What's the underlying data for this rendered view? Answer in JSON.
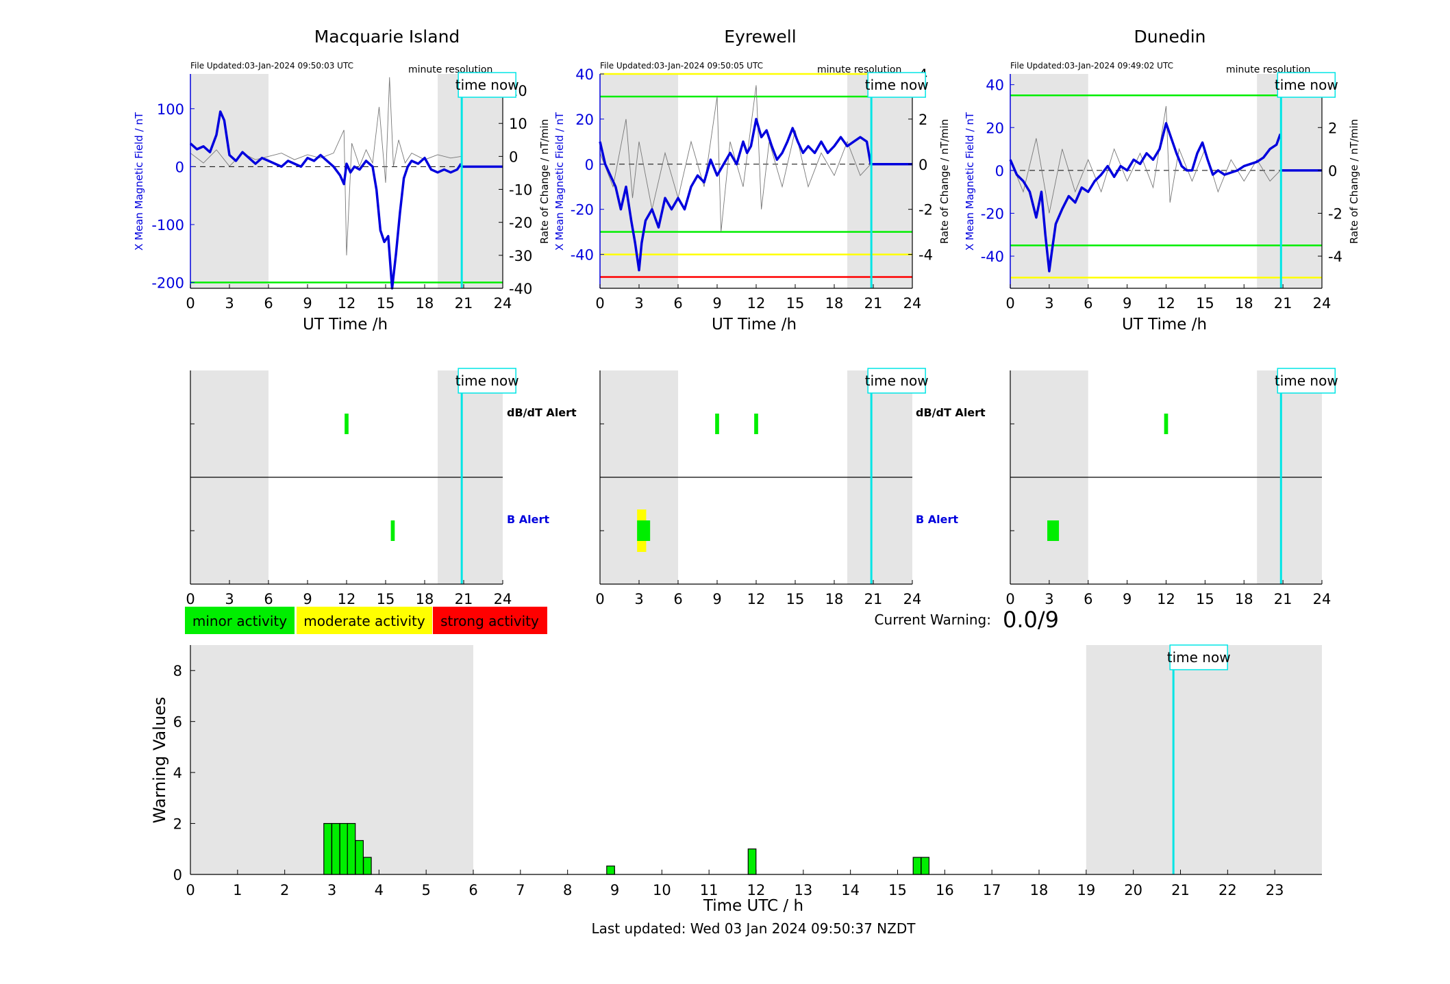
{
  "time_now_label": "time now",
  "panels": [
    {
      "title": "Macquarie Island",
      "file_updated": "File Updated:03-Jan-2024 09:50:03 UTC",
      "resolution": "minute resolution",
      "left_axis_label": "X Mean Magnetic Field / nT",
      "right_axis_label": "Rate of Change / nT/min",
      "xlabel": "UT Time /h"
    },
    {
      "title": "Eyrewell",
      "file_updated": "File Updated:03-Jan-2024 09:50:05 UTC",
      "resolution": "minute resolution",
      "left_axis_label": "X Mean Magnetic Field / nT",
      "right_axis_label": "Rate of Change / nT/min",
      "xlabel": "UT Time /h"
    },
    {
      "title": "Dunedin",
      "file_updated": "File Updated:03-Jan-2024 09:49:02 UTC",
      "resolution": "minute resolution",
      "left_axis_label": "X Mean Magnetic Field / nT",
      "right_axis_label": "Rate of Change / nT/min",
      "xlabel": "UT Time /h"
    }
  ],
  "alert_labels": {
    "dbdt": "dB/dT Alert",
    "b": "B Alert"
  },
  "legend": {
    "minor": "minor activity",
    "moderate": "moderate activity",
    "strong": "strong activity"
  },
  "current_warning": {
    "label": "Current Warning:",
    "value": "0.0/9"
  },
  "bottom": {
    "ylabel": "Warning Values",
    "xlabel": "Time UTC / h",
    "last_updated": "Last updated: Wed 03 Jan 2024 09:50:37 NZDT"
  },
  "colors": {
    "minor": "#00ee00",
    "moderate": "#ffff00",
    "strong": "#ff0000",
    "field_line": "#0000dd",
    "time_now": "#00e5e5",
    "night_shade": "#e5e5e5"
  },
  "chart_data": [
    {
      "type": "line",
      "station": "Macquarie Island",
      "xlim": [
        0,
        24
      ],
      "ylim": [
        -210,
        160
      ],
      "y_ticks": [
        100,
        0,
        -100,
        -200
      ],
      "y2lim": [
        -40,
        25
      ],
      "y2_ticks": [
        20,
        10,
        0,
        -10,
        -20,
        -30,
        -40
      ],
      "x_ticks": [
        0,
        3,
        6,
        9,
        12,
        15,
        18,
        21,
        24
      ],
      "night_shading": [
        [
          0,
          6
        ],
        [
          19,
          24
        ]
      ],
      "time_now": 20.85,
      "thresholds": [
        {
          "level": "minor",
          "value": -200
        }
      ],
      "series": [
        {
          "x": [
            0,
            0.5,
            1,
            1.5,
            2,
            2.3,
            2.6,
            3,
            3.5,
            4,
            4.5,
            5,
            5.5,
            6,
            6.5,
            7,
            7.5,
            8,
            8.5,
            9,
            9.5,
            10,
            10.5,
            11,
            11.5,
            11.8,
            12,
            12.3,
            12.6,
            13,
            13.5,
            14,
            14.3,
            14.6,
            14.9,
            15.2,
            15.5,
            15.8,
            16.1,
            16.4,
            16.7,
            17,
            17.5,
            18,
            18.5,
            19,
            19.5,
            20,
            20.5,
            20.8
          ],
          "y": [
            40,
            30,
            35,
            25,
            55,
            95,
            80,
            20,
            10,
            25,
            15,
            5,
            15,
            10,
            5,
            0,
            10,
            5,
            0,
            15,
            10,
            20,
            10,
            0,
            -15,
            -30,
            5,
            -10,
            0,
            -5,
            10,
            0,
            -40,
            -110,
            -130,
            -120,
            -210,
            -150,
            -80,
            -20,
            0,
            10,
            5,
            15,
            -5,
            -10,
            -5,
            -10,
            -5,
            5
          ]
        },
        {
          "x": [
            0,
            1,
            2,
            3,
            4,
            5,
            6,
            7,
            8,
            9,
            10,
            11,
            11.8,
            12,
            12.4,
            13,
            13.5,
            14,
            14.5,
            15,
            15.3,
            15.6,
            16,
            16.5,
            17,
            18,
            19,
            20,
            20.8
          ],
          "y": [
            1,
            -2,
            2,
            -3,
            1,
            -1,
            0,
            1,
            -1,
            0.5,
            -0.5,
            1,
            8,
            -30,
            4,
            -3,
            2,
            -2,
            15,
            -8,
            24,
            -3,
            5,
            -2,
            1,
            -1,
            0.5,
            -0.5,
            0
          ]
        },
        {
          "x": [
            20.85,
            24
          ],
          "y": [
            0,
            0
          ]
        }
      ]
    },
    {
      "type": "line",
      "station": "Eyrewell",
      "xlim": [
        0,
        24
      ],
      "ylim": [
        -55,
        40
      ],
      "y_ticks": [
        40,
        20,
        0,
        -20,
        -40
      ],
      "y2lim": [
        -5.5,
        4
      ],
      "y2_ticks": [
        4,
        2,
        0,
        -2,
        -4
      ],
      "x_ticks": [
        0,
        3,
        6,
        9,
        12,
        15,
        18,
        21,
        24
      ],
      "night_shading": [
        [
          0,
          6
        ],
        [
          19,
          24
        ]
      ],
      "time_now": 20.85,
      "thresholds": [
        {
          "level": "moderate",
          "value": 40
        },
        {
          "level": "minor",
          "value": 30
        },
        {
          "level": "minor",
          "value": -30
        },
        {
          "level": "moderate",
          "value": -40
        },
        {
          "level": "strong",
          "value": -50
        }
      ],
      "series": [
        {
          "x": [
            0,
            0.4,
            0.8,
            1.2,
            1.6,
            2,
            2.4,
            2.7,
            3,
            3.2,
            3.5,
            4,
            4.5,
            5,
            5.5,
            6,
            6.5,
            7,
            7.5,
            8,
            8.5,
            9,
            9.5,
            10,
            10.5,
            11,
            11.3,
            11.6,
            12,
            12.4,
            12.8,
            13.2,
            13.6,
            14,
            14.4,
            14.8,
            15.2,
            15.6,
            16,
            16.5,
            17,
            17.5,
            18,
            18.5,
            19,
            19.5,
            20,
            20.5,
            20.8
          ],
          "y": [
            10,
            0,
            -5,
            -10,
            -20,
            -10,
            -25,
            -35,
            -47,
            -35,
            -25,
            -20,
            -28,
            -15,
            -20,
            -15,
            -20,
            -10,
            -5,
            -8,
            2,
            -5,
            0,
            5,
            0,
            10,
            5,
            8,
            20,
            12,
            15,
            8,
            2,
            5,
            10,
            16,
            10,
            5,
            8,
            5,
            10,
            5,
            8,
            12,
            8,
            10,
            12,
            10,
            0
          ]
        },
        {
          "x": [
            0,
            1,
            2,
            2.5,
            3,
            4,
            5,
            6,
            7,
            8,
            9,
            9.3,
            10,
            11,
            12,
            12.4,
            13,
            14,
            15,
            16,
            17,
            18,
            19,
            20,
            20.8
          ],
          "y": [
            0.5,
            -1,
            2,
            -1.5,
            1,
            -2,
            0.5,
            -1.5,
            1,
            -1,
            3,
            -3,
            1,
            -1,
            3.5,
            -2,
            1,
            -1,
            1.5,
            -1,
            0.5,
            -0.5,
            1,
            -0.5,
            0
          ]
        },
        {
          "x": [
            20.85,
            24
          ],
          "y": [
            0,
            0
          ]
        }
      ]
    },
    {
      "type": "line",
      "station": "Dunedin",
      "xlim": [
        0,
        24
      ],
      "ylim": [
        -55,
        45
      ],
      "y_ticks": [
        40,
        20,
        0,
        -20,
        -40
      ],
      "y2lim": [
        -5.5,
        4.5
      ],
      "y2_ticks": [
        4,
        2,
        0,
        -2,
        -4
      ],
      "x_ticks": [
        0,
        3,
        6,
        9,
        12,
        15,
        18,
        21,
        24
      ],
      "night_shading": [
        [
          0,
          6
        ],
        [
          19,
          24
        ]
      ],
      "time_now": 20.85,
      "thresholds": [
        {
          "level": "minor",
          "value": 35
        },
        {
          "level": "minor",
          "value": -35
        },
        {
          "level": "moderate",
          "value": -50
        }
      ],
      "series": [
        {
          "x": [
            0,
            0.5,
            1,
            1.5,
            2,
            2.4,
            2.7,
            3,
            3.2,
            3.5,
            4,
            4.5,
            5,
            5.5,
            6,
            6.5,
            7,
            7.5,
            8,
            8.5,
            9,
            9.5,
            10,
            10.5,
            11,
            11.5,
            12,
            12.4,
            12.8,
            13.2,
            13.6,
            14,
            14.4,
            14.8,
            15.2,
            15.6,
            16,
            16.5,
            17,
            17.5,
            18,
            18.5,
            19,
            19.5,
            20,
            20.5,
            20.8
          ],
          "y": [
            5,
            -2,
            -5,
            -10,
            -22,
            -10,
            -30,
            -47,
            -38,
            -25,
            -18,
            -12,
            -15,
            -8,
            -10,
            -5,
            -2,
            2,
            -3,
            2,
            0,
            5,
            3,
            8,
            5,
            10,
            22,
            15,
            8,
            2,
            0,
            0,
            8,
            13,
            5,
            -2,
            0,
            -2,
            -1,
            0,
            2,
            3,
            4,
            6,
            10,
            12,
            17
          ]
        },
        {
          "x": [
            0,
            1,
            2,
            3,
            4,
            5,
            6,
            7,
            8,
            9,
            10,
            11,
            12,
            12.3,
            13,
            14,
            15,
            16,
            17,
            18,
            19,
            20,
            20.8
          ],
          "y": [
            0.5,
            -1,
            1.5,
            -2,
            1,
            -1,
            0.5,
            -1,
            1,
            -0.5,
            0.8,
            -0.8,
            3,
            -1.5,
            1,
            -0.5,
            1,
            -1,
            0.5,
            -0.5,
            0.5,
            -0.5,
            0
          ]
        },
        {
          "x": [
            20.85,
            24
          ],
          "y": [
            0,
            0
          ]
        }
      ]
    },
    {
      "type": "bar",
      "name": "Warning Values",
      "xlim": [
        0,
        24
      ],
      "ylim": [
        0,
        9
      ],
      "y_ticks": [
        0,
        2,
        4,
        6,
        8
      ],
      "x_ticks": [
        0,
        1,
        2,
        3,
        4,
        5,
        6,
        7,
        8,
        9,
        10,
        11,
        12,
        13,
        14,
        15,
        16,
        17,
        18,
        19,
        20,
        21,
        22,
        23
      ],
      "night_shading": [
        [
          0,
          6
        ],
        [
          19,
          24
        ]
      ],
      "time_now": 20.85,
      "bar_width_h": 0.1667,
      "bars": [
        {
          "x": 2.83,
          "value": 2
        },
        {
          "x": 3.0,
          "value": 2
        },
        {
          "x": 3.17,
          "value": 2
        },
        {
          "x": 3.33,
          "value": 2
        },
        {
          "x": 3.5,
          "value": 1.33
        },
        {
          "x": 3.67,
          "value": 0.67
        },
        {
          "x": 8.83,
          "value": 0.33
        },
        {
          "x": 11.83,
          "value": 1
        },
        {
          "x": 15.33,
          "value": 0.67
        },
        {
          "x": 15.5,
          "value": 0.67
        }
      ]
    }
  ],
  "alert_data": [
    {
      "station": "Macquarie Island",
      "dbdt": [
        {
          "start": 11.85,
          "end": 12.15,
          "level": "minor"
        }
      ],
      "b": [
        {
          "start": 15.4,
          "end": 15.7,
          "level": "minor"
        }
      ]
    },
    {
      "station": "Eyrewell",
      "dbdt": [
        {
          "start": 8.85,
          "end": 9.15,
          "level": "minor"
        },
        {
          "start": 11.85,
          "end": 12.15,
          "level": "minor"
        }
      ],
      "b": [
        {
          "start": 2.85,
          "end": 3.55,
          "level": "moderate",
          "tall": true
        },
        {
          "start": 2.85,
          "end": 3.85,
          "level": "minor",
          "tall": false
        }
      ]
    },
    {
      "station": "Dunedin",
      "dbdt": [
        {
          "start": 11.85,
          "end": 12.15,
          "level": "minor"
        }
      ],
      "b": [
        {
          "start": 2.85,
          "end": 3.75,
          "level": "minor"
        }
      ]
    }
  ]
}
